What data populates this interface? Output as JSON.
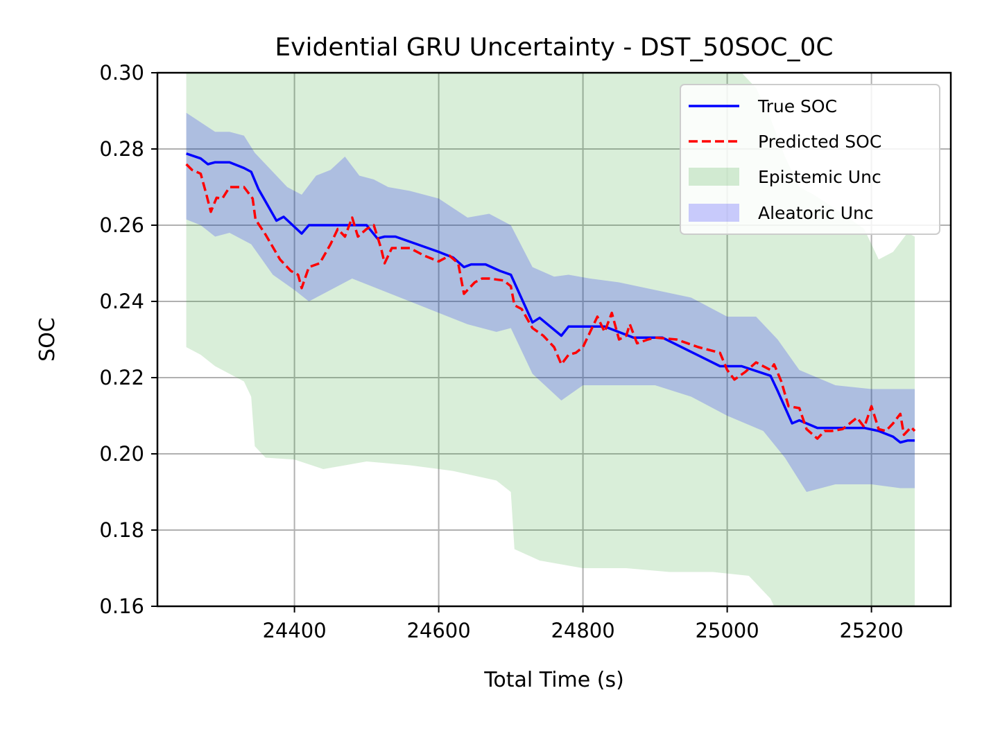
{
  "chart_data": {
    "type": "line",
    "title": "Evidential GRU Uncertainty - DST_50SOC_0C",
    "xlabel": "Total Time (s)",
    "ylabel": "SOC",
    "xlim": [
      24210,
      25310
    ],
    "ylim": [
      0.16,
      0.3
    ],
    "xticks": [
      24400,
      24600,
      24800,
      25000,
      25200
    ],
    "yticks": [
      0.16,
      0.18,
      0.2,
      0.22,
      0.24,
      0.26,
      0.28,
      0.3
    ],
    "xtick_labels": [
      "24400",
      "24600",
      "24800",
      "25000",
      "25200"
    ],
    "ytick_labels": [
      "0.16",
      "0.18",
      "0.20",
      "0.22",
      "0.24",
      "0.26",
      "0.28",
      "0.30"
    ],
    "grid": true,
    "legend_position": "top-right",
    "legend": [
      {
        "label": "True SOC",
        "kind": "line",
        "color": "#0000ff"
      },
      {
        "label": "Predicted SOC",
        "kind": "dashed-line",
        "color": "#ff0000"
      },
      {
        "label": "Epistemic Unc",
        "kind": "patch",
        "color": "#2ca02c"
      },
      {
        "label": "Aleatoric Unc",
        "kind": "patch",
        "color": "#0000ff"
      }
    ],
    "series": [
      {
        "name": "True SOC",
        "color": "#0000ff",
        "style": "solid",
        "points": [
          [
            24250,
            0.2788
          ],
          [
            24270,
            0.2775
          ],
          [
            24280,
            0.276
          ],
          [
            24290,
            0.2765
          ],
          [
            24310,
            0.2765
          ],
          [
            24330,
            0.275
          ],
          [
            24340,
            0.274
          ],
          [
            24350,
            0.2695
          ],
          [
            24375,
            0.2612
          ],
          [
            24385,
            0.2622
          ],
          [
            24410,
            0.2578
          ],
          [
            24420,
            0.26
          ],
          [
            24500,
            0.26
          ],
          [
            24515,
            0.2565
          ],
          [
            24525,
            0.257
          ],
          [
            24540,
            0.257
          ],
          [
            24600,
            0.253
          ],
          [
            24620,
            0.2515
          ],
          [
            24635,
            0.249
          ],
          [
            24645,
            0.2497
          ],
          [
            24665,
            0.2497
          ],
          [
            24685,
            0.248
          ],
          [
            24700,
            0.247
          ],
          [
            24730,
            0.2345
          ],
          [
            24740,
            0.2357
          ],
          [
            24770,
            0.231
          ],
          [
            24780,
            0.2334
          ],
          [
            24830,
            0.2334
          ],
          [
            24870,
            0.2305
          ],
          [
            24910,
            0.2305
          ],
          [
            24990,
            0.223
          ],
          [
            25010,
            0.223
          ],
          [
            25020,
            0.223
          ],
          [
            25060,
            0.2205
          ],
          [
            25070,
            0.2165
          ],
          [
            25090,
            0.208
          ],
          [
            25100,
            0.2088
          ],
          [
            25125,
            0.2068
          ],
          [
            25190,
            0.2068
          ],
          [
            25210,
            0.206
          ],
          [
            25230,
            0.2045
          ],
          [
            25240,
            0.203
          ],
          [
            25250,
            0.2035
          ],
          [
            25260,
            0.2035
          ]
        ]
      },
      {
        "name": "Predicted SOC",
        "color": "#ff0000",
        "style": "dashed",
        "points": [
          [
            24250,
            0.276
          ],
          [
            24258,
            0.2745
          ],
          [
            24270,
            0.2735
          ],
          [
            24278,
            0.268
          ],
          [
            24284,
            0.2635
          ],
          [
            24292,
            0.2672
          ],
          [
            24300,
            0.267
          ],
          [
            24310,
            0.27
          ],
          [
            24330,
            0.27
          ],
          [
            24342,
            0.267
          ],
          [
            24346,
            0.2615
          ],
          [
            24360,
            0.2575
          ],
          [
            24380,
            0.251
          ],
          [
            24395,
            0.248
          ],
          [
            24405,
            0.247
          ],
          [
            24410,
            0.2435
          ],
          [
            24420,
            0.249
          ],
          [
            24435,
            0.25
          ],
          [
            24450,
            0.255
          ],
          [
            24460,
            0.259
          ],
          [
            24470,
            0.257
          ],
          [
            24480,
            0.262
          ],
          [
            24488,
            0.257
          ],
          [
            24500,
            0.259
          ],
          [
            24510,
            0.26
          ],
          [
            24520,
            0.254
          ],
          [
            24525,
            0.25
          ],
          [
            24535,
            0.254
          ],
          [
            24560,
            0.254
          ],
          [
            24580,
            0.252
          ],
          [
            24600,
            0.2505
          ],
          [
            24615,
            0.252
          ],
          [
            24627,
            0.25
          ],
          [
            24635,
            0.242
          ],
          [
            24650,
            0.245
          ],
          [
            24660,
            0.246
          ],
          [
            24670,
            0.246
          ],
          [
            24690,
            0.2455
          ],
          [
            24700,
            0.244
          ],
          [
            24705,
            0.239
          ],
          [
            24715,
            0.238
          ],
          [
            24730,
            0.233
          ],
          [
            24745,
            0.231
          ],
          [
            24760,
            0.228
          ],
          [
            24770,
            0.2235
          ],
          [
            24780,
            0.226
          ],
          [
            24790,
            0.2265
          ],
          [
            24800,
            0.228
          ],
          [
            24810,
            0.232
          ],
          [
            24820,
            0.236
          ],
          [
            24830,
            0.232
          ],
          [
            24840,
            0.237
          ],
          [
            24850,
            0.23
          ],
          [
            24860,
            0.231
          ],
          [
            24865,
            0.234
          ],
          [
            24875,
            0.229
          ],
          [
            24890,
            0.23
          ],
          [
            24900,
            0.2305
          ],
          [
            24930,
            0.23
          ],
          [
            24960,
            0.228
          ],
          [
            24990,
            0.2265
          ],
          [
            25000,
            0.222
          ],
          [
            25010,
            0.2195
          ],
          [
            25025,
            0.2215
          ],
          [
            25040,
            0.224
          ],
          [
            25060,
            0.222
          ],
          [
            25065,
            0.2235
          ],
          [
            25075,
            0.219
          ],
          [
            25085,
            0.2125
          ],
          [
            25100,
            0.212
          ],
          [
            25110,
            0.2065
          ],
          [
            25125,
            0.204
          ],
          [
            25135,
            0.206
          ],
          [
            25145,
            0.206
          ],
          [
            25160,
            0.2065
          ],
          [
            25170,
            0.208
          ],
          [
            25180,
            0.2095
          ],
          [
            25190,
            0.207
          ],
          [
            25200,
            0.2125
          ],
          [
            25210,
            0.2065
          ],
          [
            25220,
            0.206
          ],
          [
            25230,
            0.208
          ],
          [
            25240,
            0.2105
          ],
          [
            25245,
            0.205
          ],
          [
            25255,
            0.207
          ],
          [
            25260,
            0.206
          ]
        ]
      }
    ],
    "bands": [
      {
        "name": "Epistemic Unc",
        "color": "#2ca02c",
        "opacity": 0.18,
        "upper": [
          [
            24250,
            0.3
          ],
          [
            25020,
            0.3
          ],
          [
            25040,
            0.296
          ],
          [
            25060,
            0.288
          ],
          [
            25080,
            0.278
          ],
          [
            25100,
            0.27
          ],
          [
            25120,
            0.268
          ],
          [
            25160,
            0.263
          ],
          [
            25190,
            0.259
          ],
          [
            25210,
            0.251
          ],
          [
            25230,
            0.253
          ],
          [
            25250,
            0.258
          ],
          [
            25260,
            0.257
          ]
        ],
        "lower": [
          [
            24250,
            0.228
          ],
          [
            24270,
            0.226
          ],
          [
            24290,
            0.223
          ],
          [
            24310,
            0.221
          ],
          [
            24330,
            0.219
          ],
          [
            24340,
            0.215
          ],
          [
            24345,
            0.202
          ],
          [
            24360,
            0.199
          ],
          [
            24400,
            0.1985
          ],
          [
            24440,
            0.196
          ],
          [
            24500,
            0.198
          ],
          [
            24560,
            0.197
          ],
          [
            24620,
            0.1955
          ],
          [
            24680,
            0.193
          ],
          [
            24700,
            0.19
          ],
          [
            24705,
            0.175
          ],
          [
            24740,
            0.172
          ],
          [
            24800,
            0.17
          ],
          [
            24860,
            0.17
          ],
          [
            24920,
            0.169
          ],
          [
            24980,
            0.169
          ],
          [
            25030,
            0.168
          ],
          [
            25060,
            0.162
          ],
          [
            25065,
            0.16
          ],
          [
            25260,
            0.16
          ]
        ]
      },
      {
        "name": "Aleatoric Unc",
        "color": "#0000ff",
        "opacity": 0.2,
        "upper": [
          [
            24250,
            0.2895
          ],
          [
            24270,
            0.287
          ],
          [
            24290,
            0.2845
          ],
          [
            24310,
            0.2845
          ],
          [
            24330,
            0.2835
          ],
          [
            24345,
            0.279
          ],
          [
            24370,
            0.274
          ],
          [
            24390,
            0.27
          ],
          [
            24410,
            0.268
          ],
          [
            24430,
            0.273
          ],
          [
            24450,
            0.2745
          ],
          [
            24470,
            0.278
          ],
          [
            24490,
            0.273
          ],
          [
            24510,
            0.272
          ],
          [
            24530,
            0.27
          ],
          [
            24560,
            0.269
          ],
          [
            24600,
            0.267
          ],
          [
            24640,
            0.262
          ],
          [
            24670,
            0.263
          ],
          [
            24700,
            0.26
          ],
          [
            24730,
            0.249
          ],
          [
            24760,
            0.2465
          ],
          [
            24780,
            0.247
          ],
          [
            24810,
            0.246
          ],
          [
            24850,
            0.245
          ],
          [
            24900,
            0.243
          ],
          [
            24950,
            0.241
          ],
          [
            25000,
            0.236
          ],
          [
            25040,
            0.236
          ],
          [
            25070,
            0.23
          ],
          [
            25100,
            0.222
          ],
          [
            25150,
            0.218
          ],
          [
            25200,
            0.217
          ],
          [
            25230,
            0.217
          ],
          [
            25260,
            0.217
          ]
        ],
        "lower": [
          [
            24250,
            0.2615
          ],
          [
            24270,
            0.26
          ],
          [
            24290,
            0.257
          ],
          [
            24310,
            0.258
          ],
          [
            24340,
            0.255
          ],
          [
            24370,
            0.247
          ],
          [
            24400,
            0.243
          ],
          [
            24420,
            0.24
          ],
          [
            24450,
            0.243
          ],
          [
            24480,
            0.246
          ],
          [
            24520,
            0.243
          ],
          [
            24560,
            0.24
          ],
          [
            24600,
            0.237
          ],
          [
            24640,
            0.234
          ],
          [
            24680,
            0.232
          ],
          [
            24700,
            0.233
          ],
          [
            24730,
            0.221
          ],
          [
            24770,
            0.214
          ],
          [
            24800,
            0.218
          ],
          [
            24850,
            0.218
          ],
          [
            24900,
            0.218
          ],
          [
            24950,
            0.215
          ],
          [
            25000,
            0.21
          ],
          [
            25050,
            0.206
          ],
          [
            25080,
            0.199
          ],
          [
            25110,
            0.19
          ],
          [
            25150,
            0.192
          ],
          [
            25200,
            0.192
          ],
          [
            25240,
            0.191
          ],
          [
            25260,
            0.191
          ]
        ]
      }
    ]
  }
}
